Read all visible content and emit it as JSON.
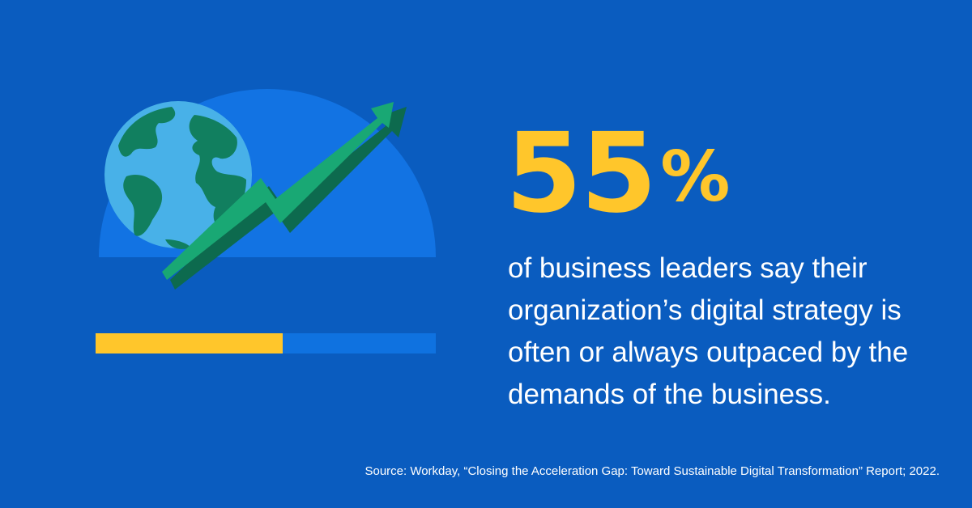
{
  "stat": {
    "value": "55",
    "percent_sign": "%",
    "fraction": 0.55,
    "description": "of business leaders say their organization’s digital strategy is often or always outpaced by the demands of the business."
  },
  "source": "Source: Workday, “Closing the Acceleration Gap: Toward Sustainable Digital Transformation” Report; 2022.",
  "colors": {
    "background": "#0a5cbf",
    "accent": "#ffc62b",
    "semicircle": "#1273e3",
    "arrow": "#17a673",
    "globe_ocean": "#48b1e8",
    "globe_land": "#117f5f"
  },
  "icons": [
    "globe-icon",
    "growth-arrow-icon"
  ]
}
